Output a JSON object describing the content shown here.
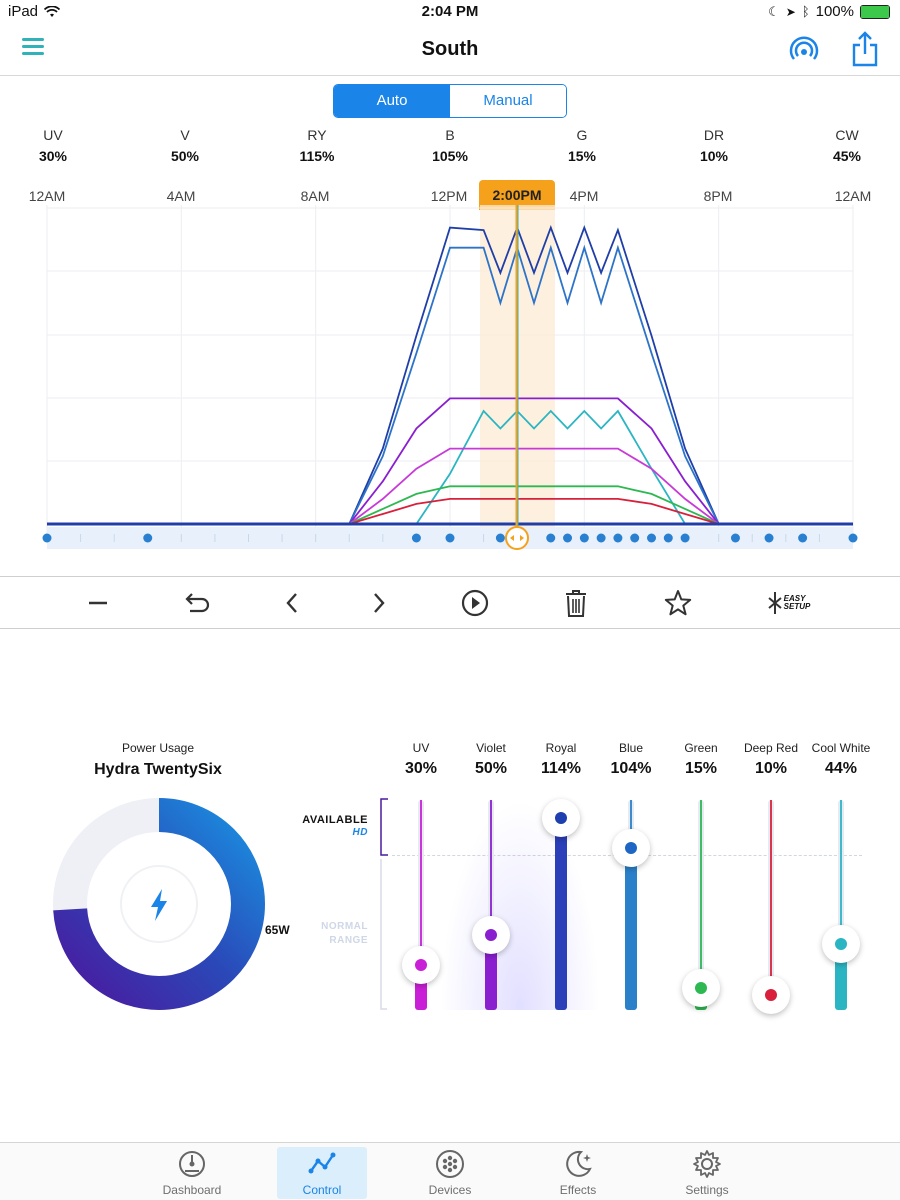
{
  "status_bar": {
    "device": "iPad",
    "time": "2:04 PM",
    "battery": "100%"
  },
  "nav": {
    "title": "South"
  },
  "mode": {
    "auto": "Auto",
    "manual": "Manual",
    "selected": "Auto"
  },
  "channels": [
    {
      "name": "UV",
      "value": "30%"
    },
    {
      "name": "V",
      "value": "50%"
    },
    {
      "name": "RY",
      "value": "115%"
    },
    {
      "name": "B",
      "value": "105%"
    },
    {
      "name": "G",
      "value": "15%"
    },
    {
      "name": "DR",
      "value": "10%"
    },
    {
      "name": "CW",
      "value": "45%"
    }
  ],
  "timeline": {
    "labels": [
      "12AM",
      "4AM",
      "8AM",
      "12PM",
      "4PM",
      "8PM",
      "12AM"
    ],
    "current_time": "2:00PM"
  },
  "chart_data": {
    "type": "line",
    "x_hours": [
      0,
      3.5,
      9,
      10,
      11,
      12,
      13,
      13.5,
      14,
      14.5,
      15,
      15.5,
      16,
      16.5,
      17,
      18,
      19,
      20,
      24
    ],
    "y_range": [
      0,
      125
    ],
    "series": [
      {
        "color": "#1f3ea8",
        "values": [
          0,
          0,
          0,
          30,
          75,
          118,
          117,
          100,
          118,
          100,
          118,
          100,
          118,
          100,
          117,
          75,
          30,
          0,
          0
        ]
      },
      {
        "color": "#2d74c9",
        "values": [
          0,
          0,
          0,
          27,
          68,
          110,
          110,
          88,
          110,
          88,
          110,
          88,
          110,
          88,
          110,
          68,
          27,
          0,
          0
        ]
      },
      {
        "color": "#8a1fd0",
        "values": [
          0,
          0,
          0,
          17,
          38,
          50,
          50,
          50,
          50,
          50,
          50,
          50,
          50,
          50,
          50,
          38,
          17,
          0,
          0
        ]
      },
      {
        "color": "#2bb5c3",
        "values": [
          0,
          0,
          0,
          0,
          0,
          20,
          45,
          38,
          45,
          38,
          45,
          38,
          45,
          38,
          45,
          22,
          0,
          0,
          0
        ]
      },
      {
        "color": "#c83ad8",
        "values": [
          0,
          0,
          0,
          10,
          22,
          30,
          30,
          30,
          30,
          30,
          30,
          30,
          30,
          30,
          30,
          22,
          10,
          0,
          0
        ]
      },
      {
        "color": "#2eb852",
        "values": [
          0,
          0,
          0,
          6,
          12,
          15,
          15,
          15,
          15,
          15,
          15,
          15,
          15,
          15,
          15,
          12,
          6,
          0,
          0
        ]
      },
      {
        "color": "#d8203c",
        "values": [
          0,
          0,
          0,
          4,
          8,
          10,
          10,
          10,
          10,
          10,
          10,
          10,
          10,
          10,
          10,
          8,
          4,
          0,
          0
        ]
      }
    ],
    "point_hours": [
      0,
      3,
      11,
      12,
      13.5,
      15,
      15.5,
      16,
      16.5,
      17,
      17.5,
      18,
      18.5,
      19,
      20.5,
      21.5,
      22.5,
      24
    ],
    "grid": true
  },
  "power": {
    "label": "Power Usage",
    "name": "Hydra TwentySix",
    "watts": "65W",
    "fraction": 0.74
  },
  "ranges": {
    "available": "AVAILABLE",
    "hd": "HD",
    "normal_1": "NORMAL",
    "normal_2": "RANGE"
  },
  "sliders": [
    {
      "name": "UV",
      "value": "30%",
      "level": 0.3,
      "color": "#c91fd6",
      "knob": "#c91fd6"
    },
    {
      "name": "Violet",
      "value": "50%",
      "level": 0.5,
      "color": "#8a1fd0",
      "knob": "#8a1fd0"
    },
    {
      "name": "Royal",
      "value": "114%",
      "level": 1.14,
      "color": "#2a3fb8",
      "knob": "#1e3fae"
    },
    {
      "name": "Blue",
      "value": "104%",
      "level": 1.04,
      "color": "#2a80c9",
      "knob": "#1f66c4"
    },
    {
      "name": "Green",
      "value": "15%",
      "level": 0.15,
      "color": "#2eb852",
      "knob": "#2eb852"
    },
    {
      "name": "Deep Red",
      "value": "10%",
      "level": 0.1,
      "color": "#d8203c",
      "knob": "#d8203c"
    },
    {
      "name": "Cool White",
      "value": "44%",
      "level": 0.44,
      "color": "#2bb5c3",
      "knob": "#2bb5c3"
    }
  ],
  "tabs": [
    {
      "label": "Dashboard",
      "icon": "dashboard-icon"
    },
    {
      "label": "Control",
      "icon": "control-icon",
      "active": true
    },
    {
      "label": "Devices",
      "icon": "devices-icon"
    },
    {
      "label": "Effects",
      "icon": "effects-icon"
    },
    {
      "label": "Settings",
      "icon": "settings-icon"
    }
  ],
  "toolbar": [
    "minus-icon",
    "undo-icon",
    "prev-icon",
    "next-icon",
    "play-icon",
    "trash-icon",
    "star-icon",
    "easy-setup-icon"
  ],
  "easy_setup": {
    "line1": "EASY",
    "line2": "SETUP"
  }
}
